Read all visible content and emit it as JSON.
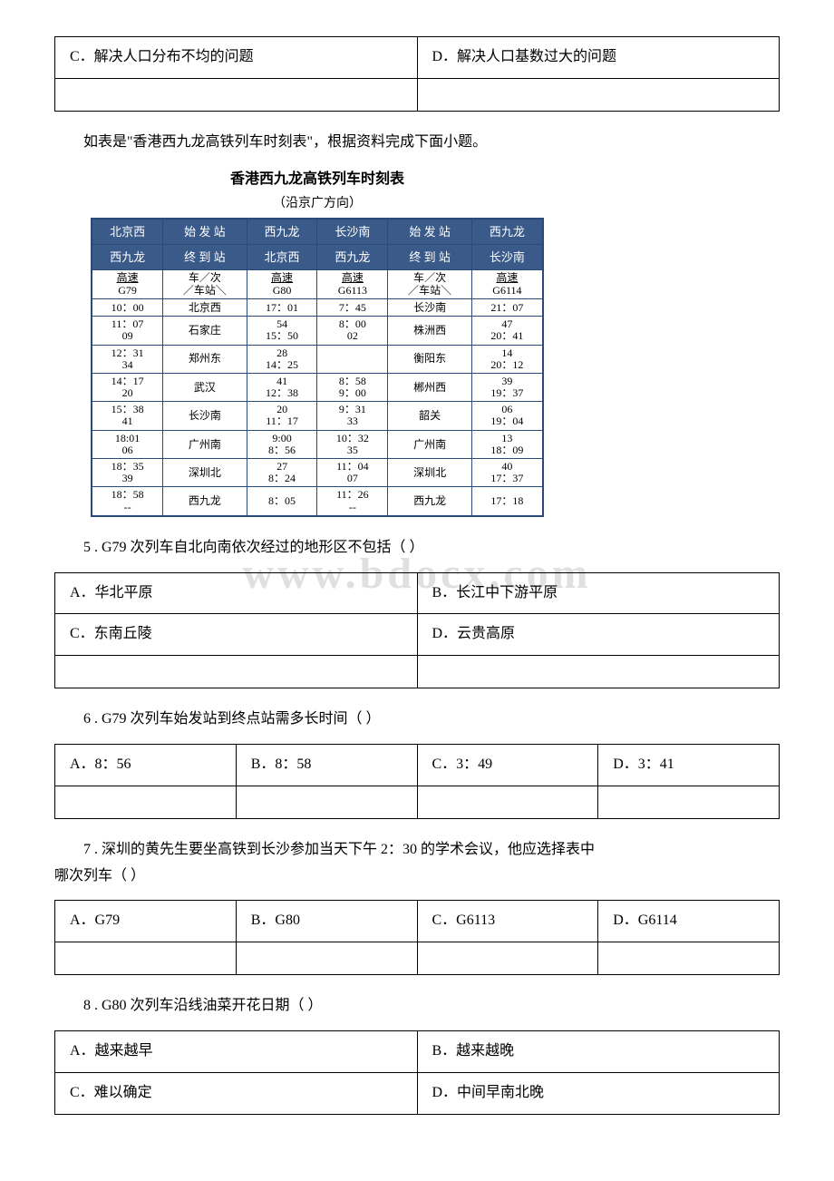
{
  "topRow": {
    "optC": "C．解决人口分布不均的问题",
    "optD": "D．解决人口基数过大的问题"
  },
  "intro": "如表是\"香港西九龙高铁列车时刻表\"，根据资料完成下面小题。",
  "timetable": {
    "title": "香港西九龙高铁列车时刻表",
    "subtitle": "（沿京广方向）",
    "left": {
      "col1_top": "北京西",
      "col2_top": "始 发 站",
      "col3_top": "西九龙",
      "col1_mid": "西九龙",
      "col2_mid": "终 到 站",
      "col3_mid": "北京西",
      "type1_a": "高速",
      "type1_b": "G79",
      "type2_a": "车",
      "type2_b": "次",
      "type2_c": "车站",
      "type3_a": "高速",
      "type3_b": "G80",
      "rows": [
        {
          "a1": "10：00",
          "a2": "",
          "st": "北京西",
          "b1": "17：01",
          "b2": ""
        },
        {
          "a1": "11：07",
          "a2": "09",
          "st": "石家庄",
          "b1": "54",
          "b2": "15：50"
        },
        {
          "a1": "12：31",
          "a2": "34",
          "st": "郑州东",
          "b1": "28",
          "b2": "14：25"
        },
        {
          "a1": "14：17",
          "a2": "20",
          "st": "武汉",
          "b1": "41",
          "b2": "12：38"
        },
        {
          "a1": "15：38",
          "a2": "41",
          "st": "长沙南",
          "b1": "20",
          "b2": "11：17"
        },
        {
          "a1": "18:01",
          "a2": "06",
          "st": "广州南",
          "b1": "9:00",
          "b2": "8：56"
        },
        {
          "a1": "18：35",
          "a2": "39",
          "st": "深圳北",
          "b1": "27",
          "b2": "8：24"
        },
        {
          "a1": "18：58",
          "a2": "--",
          "st": "西九龙",
          "b1": "8：05",
          "b2": ""
        }
      ]
    },
    "right": {
      "col1_top": "长沙南",
      "col2_top": "始 发 站",
      "col3_top": "西九龙",
      "col1_mid": "西九龙",
      "col2_mid": "终 到 站",
      "col3_mid": "长沙南",
      "type1_a": "高速",
      "type1_b": "G6113",
      "type2_a": "车",
      "type2_b": "次",
      "type2_c": "车站",
      "type3_a": "高速",
      "type3_b": "G6114",
      "rows": [
        {
          "a1": "7：45",
          "a2": "",
          "st": "长沙南",
          "b1": "21：07",
          "b2": ""
        },
        {
          "a1": "8：00",
          "a2": "02",
          "st": "株洲西",
          "b1": "47",
          "b2": "20：41"
        },
        {
          "a1": "",
          "a2": "",
          "st": "衡阳东",
          "b1": "14",
          "b2": "20：12"
        },
        {
          "a1": "8：58",
          "a2": "9：00",
          "st": "郴州西",
          "b1": "39",
          "b2": "19：37"
        },
        {
          "a1": "9：31",
          "a2": "33",
          "st": "韶关",
          "b1": "06",
          "b2": "19：04"
        },
        {
          "a1": "10：32",
          "a2": "35",
          "st": "广州南",
          "b1": "13",
          "b2": "18：09"
        },
        {
          "a1": "11：04",
          "a2": "07",
          "st": "深圳北",
          "b1": "40",
          "b2": "17：37"
        },
        {
          "a1": "11：26",
          "a2": "--",
          "st": "西九龙",
          "b1": "17：18",
          "b2": ""
        }
      ]
    }
  },
  "q5": {
    "stem": "5 . G79 次列车自北向南依次经过的地形区不包括（ ）",
    "optA": "A．华北平原",
    "optB": "B．长江中下游平原",
    "optC": "C．东南丘陵",
    "optD": "D．云贵高原"
  },
  "q6": {
    "stem": "6 . G79 次列车始发站到终点站需多长时间（ ）",
    "optA": "A．8：56",
    "optB": "B．8：58",
    "optC": "C．3：49",
    "optD": "D．3：41"
  },
  "q7": {
    "stem_l1": "7 . 深圳的黄先生要坐高铁到长沙参加当天下午 2：30 的学术会议，他应选择表中",
    "stem_l2": "哪次列车（ ）",
    "optA": "A．G79",
    "optB": "B．G80",
    "optC": "C．G6113",
    "optD": "D．G6114"
  },
  "q8": {
    "stem": "8 . G80 次列车沿线油菜开花日期（ ）",
    "optA": "A．越来越早",
    "optB": "B．越来越晚",
    "optC": "C．难以确定",
    "optD": "D．中间早南北晚"
  },
  "watermark": "www.bdocx.com"
}
